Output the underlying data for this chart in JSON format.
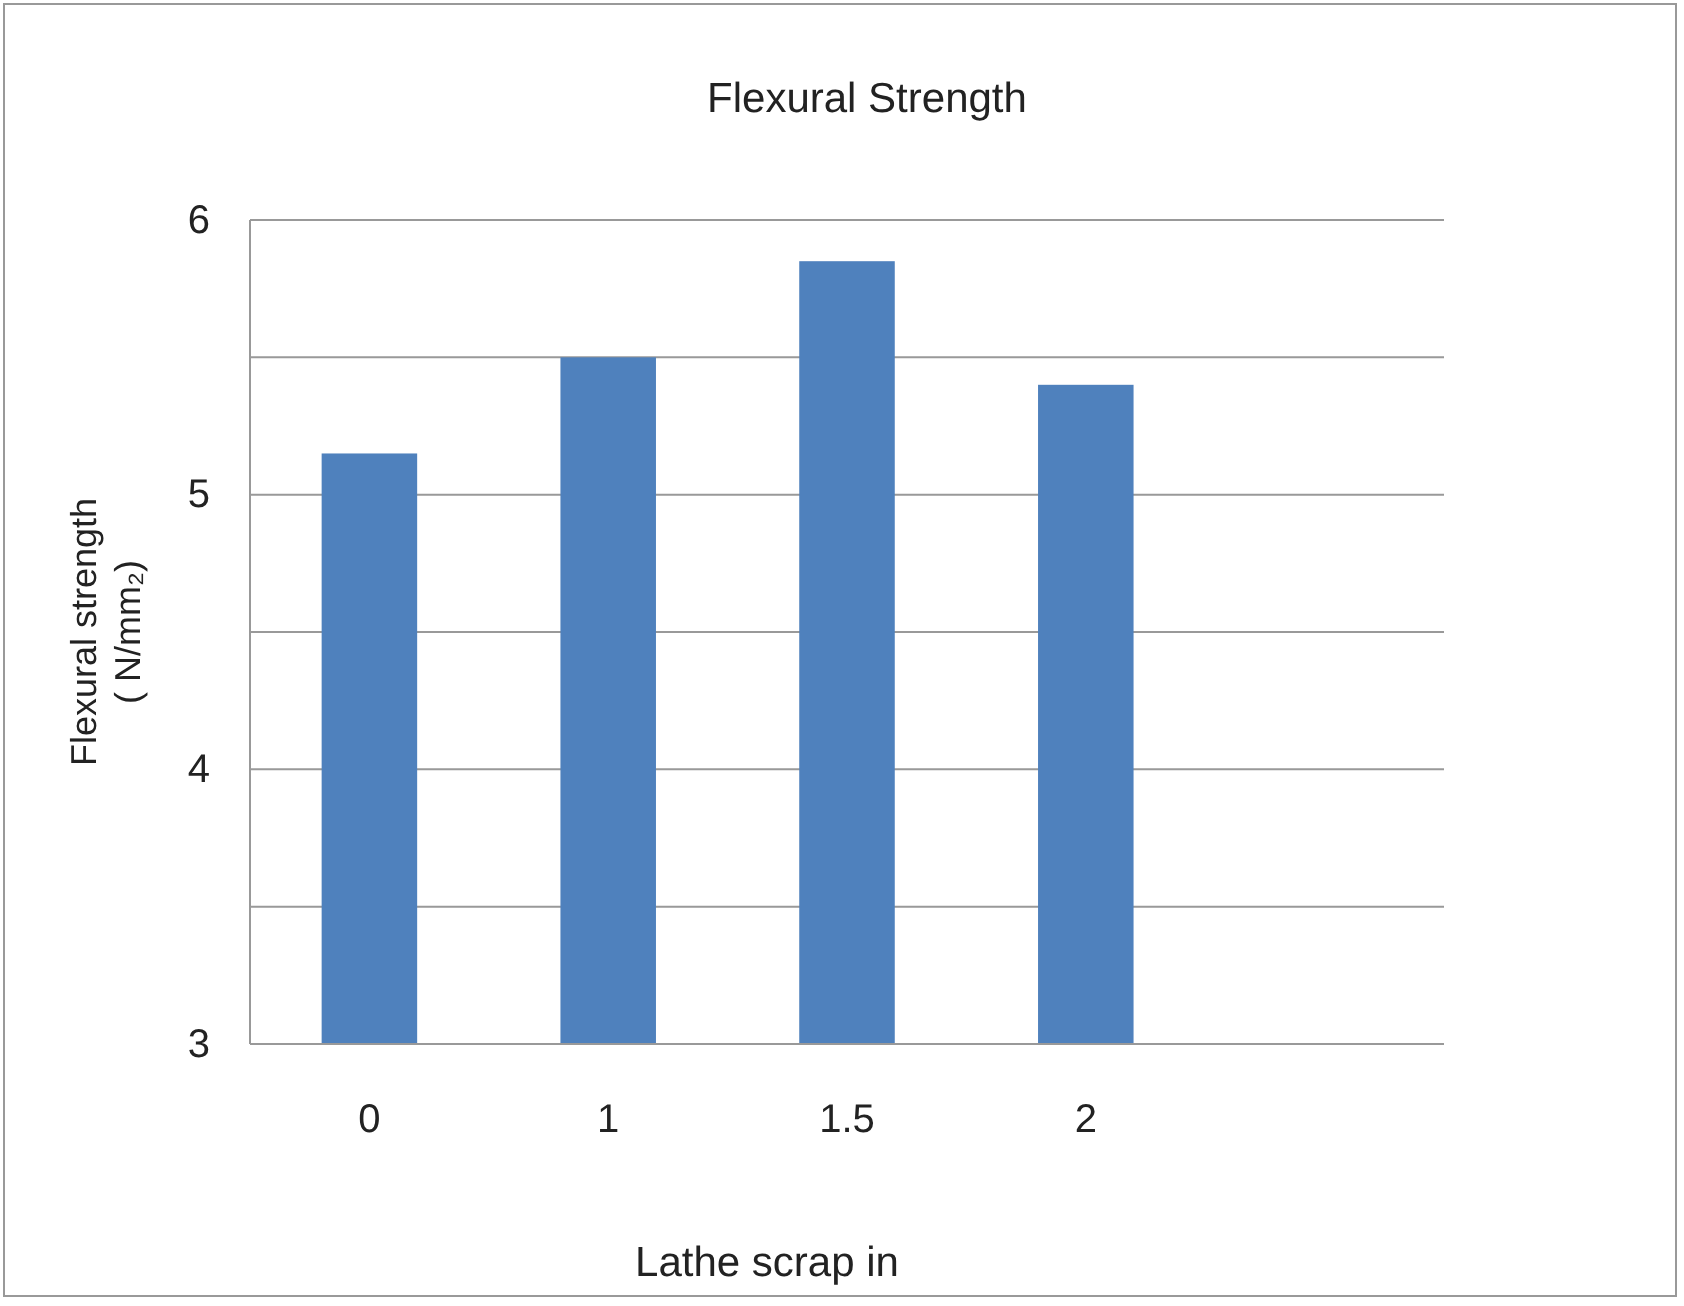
{
  "chart_data": {
    "type": "bar",
    "title": "Flexural Strength",
    "xlabel": "Lathe scrap in",
    "ylabel": "Flexural strength\n( N/mm₂)",
    "categories": [
      "0",
      "1",
      "1.5",
      "2",
      null
    ],
    "values": [
      5.15,
      5.5,
      5.85,
      5.4,
      null
    ],
    "color": "#4f81bd",
    "ylim": [
      3,
      6
    ],
    "yticks": [
      {
        "value": 3,
        "label": "3"
      },
      {
        "value": 3.5,
        "label": null
      },
      {
        "value": 4,
        "label": "4"
      },
      {
        "value": 4.5,
        "label": null
      },
      {
        "value": 5,
        "label": "5"
      },
      {
        "value": 5.5,
        "label": null
      },
      {
        "value": 6,
        "label": "6"
      }
    ],
    "grid": "y"
  }
}
